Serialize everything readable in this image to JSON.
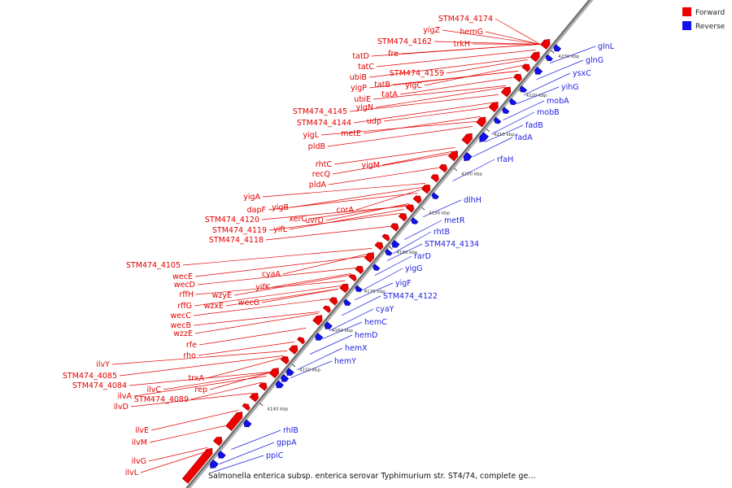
{
  "legend": {
    "items": [
      {
        "label": "Forward",
        "color": "#ee0000"
      },
      {
        "label": "Reverse",
        "color": "#1111ee"
      }
    ]
  },
  "caption": "Salmonella enterica subsp. enterica serovar Typhimurium str. ST4/74, complete ge...",
  "ticks": [
    "4140 kbp",
    "4150 kbp",
    "4160 kbp",
    "4170 kbp",
    "4180 kbp",
    "4190 kbp",
    "4200 kbp",
    "4210 kbp",
    "4220 kbp",
    "4230 kbp"
  ],
  "forward_labels": [
    "STM474_4174",
    "hemG",
    "yigZ",
    "trkH",
    "STM474_4162",
    "fre",
    "tatD",
    "tatC",
    "STM474_4159",
    "ubiB",
    "yigP",
    "tatB",
    "yigC",
    "tatA",
    "ubiE",
    "yigN",
    "STM474_4145",
    "udp",
    "STM474_4144",
    "metE",
    "yigL",
    "pldB",
    "rhtC",
    "yigM",
    "recQ",
    "pldA",
    "yigA",
    "yigB",
    "dapF",
    "xerC",
    "corA",
    "uvrD",
    "STM474_4120",
    "yifL",
    "STM474_4119",
    "STM474_4118",
    "cyaA",
    "STM474_4105",
    "yifK",
    "wecE",
    "wecD",
    "rffH",
    "wzyE",
    "wzxE",
    "wecG",
    "rffG",
    "wecC",
    "wecB",
    "wzzE",
    "rfe",
    "rho",
    "trxA",
    "rep",
    "ilvY",
    "STM474_4085",
    "ilvC",
    "STM474_4084",
    "ilvA",
    "STM474_4089",
    "ilvD",
    "ilvE",
    "ilvM",
    "ilvG",
    "ilvL"
  ],
  "reverse_labels": [
    "glnL",
    "glnG",
    "ysxC",
    "yihG",
    "mobA",
    "mobB",
    "fadB",
    "fadA",
    "rfaH",
    "dlhH",
    "metR",
    "rhtB",
    "STM474_4134",
    "rarD",
    "yigG",
    "yigF",
    "STM474_4122",
    "cyaY",
    "hemC",
    "hemD",
    "hemX",
    "hemY",
    "rhlB",
    "gppA",
    "ppiC"
  ]
}
